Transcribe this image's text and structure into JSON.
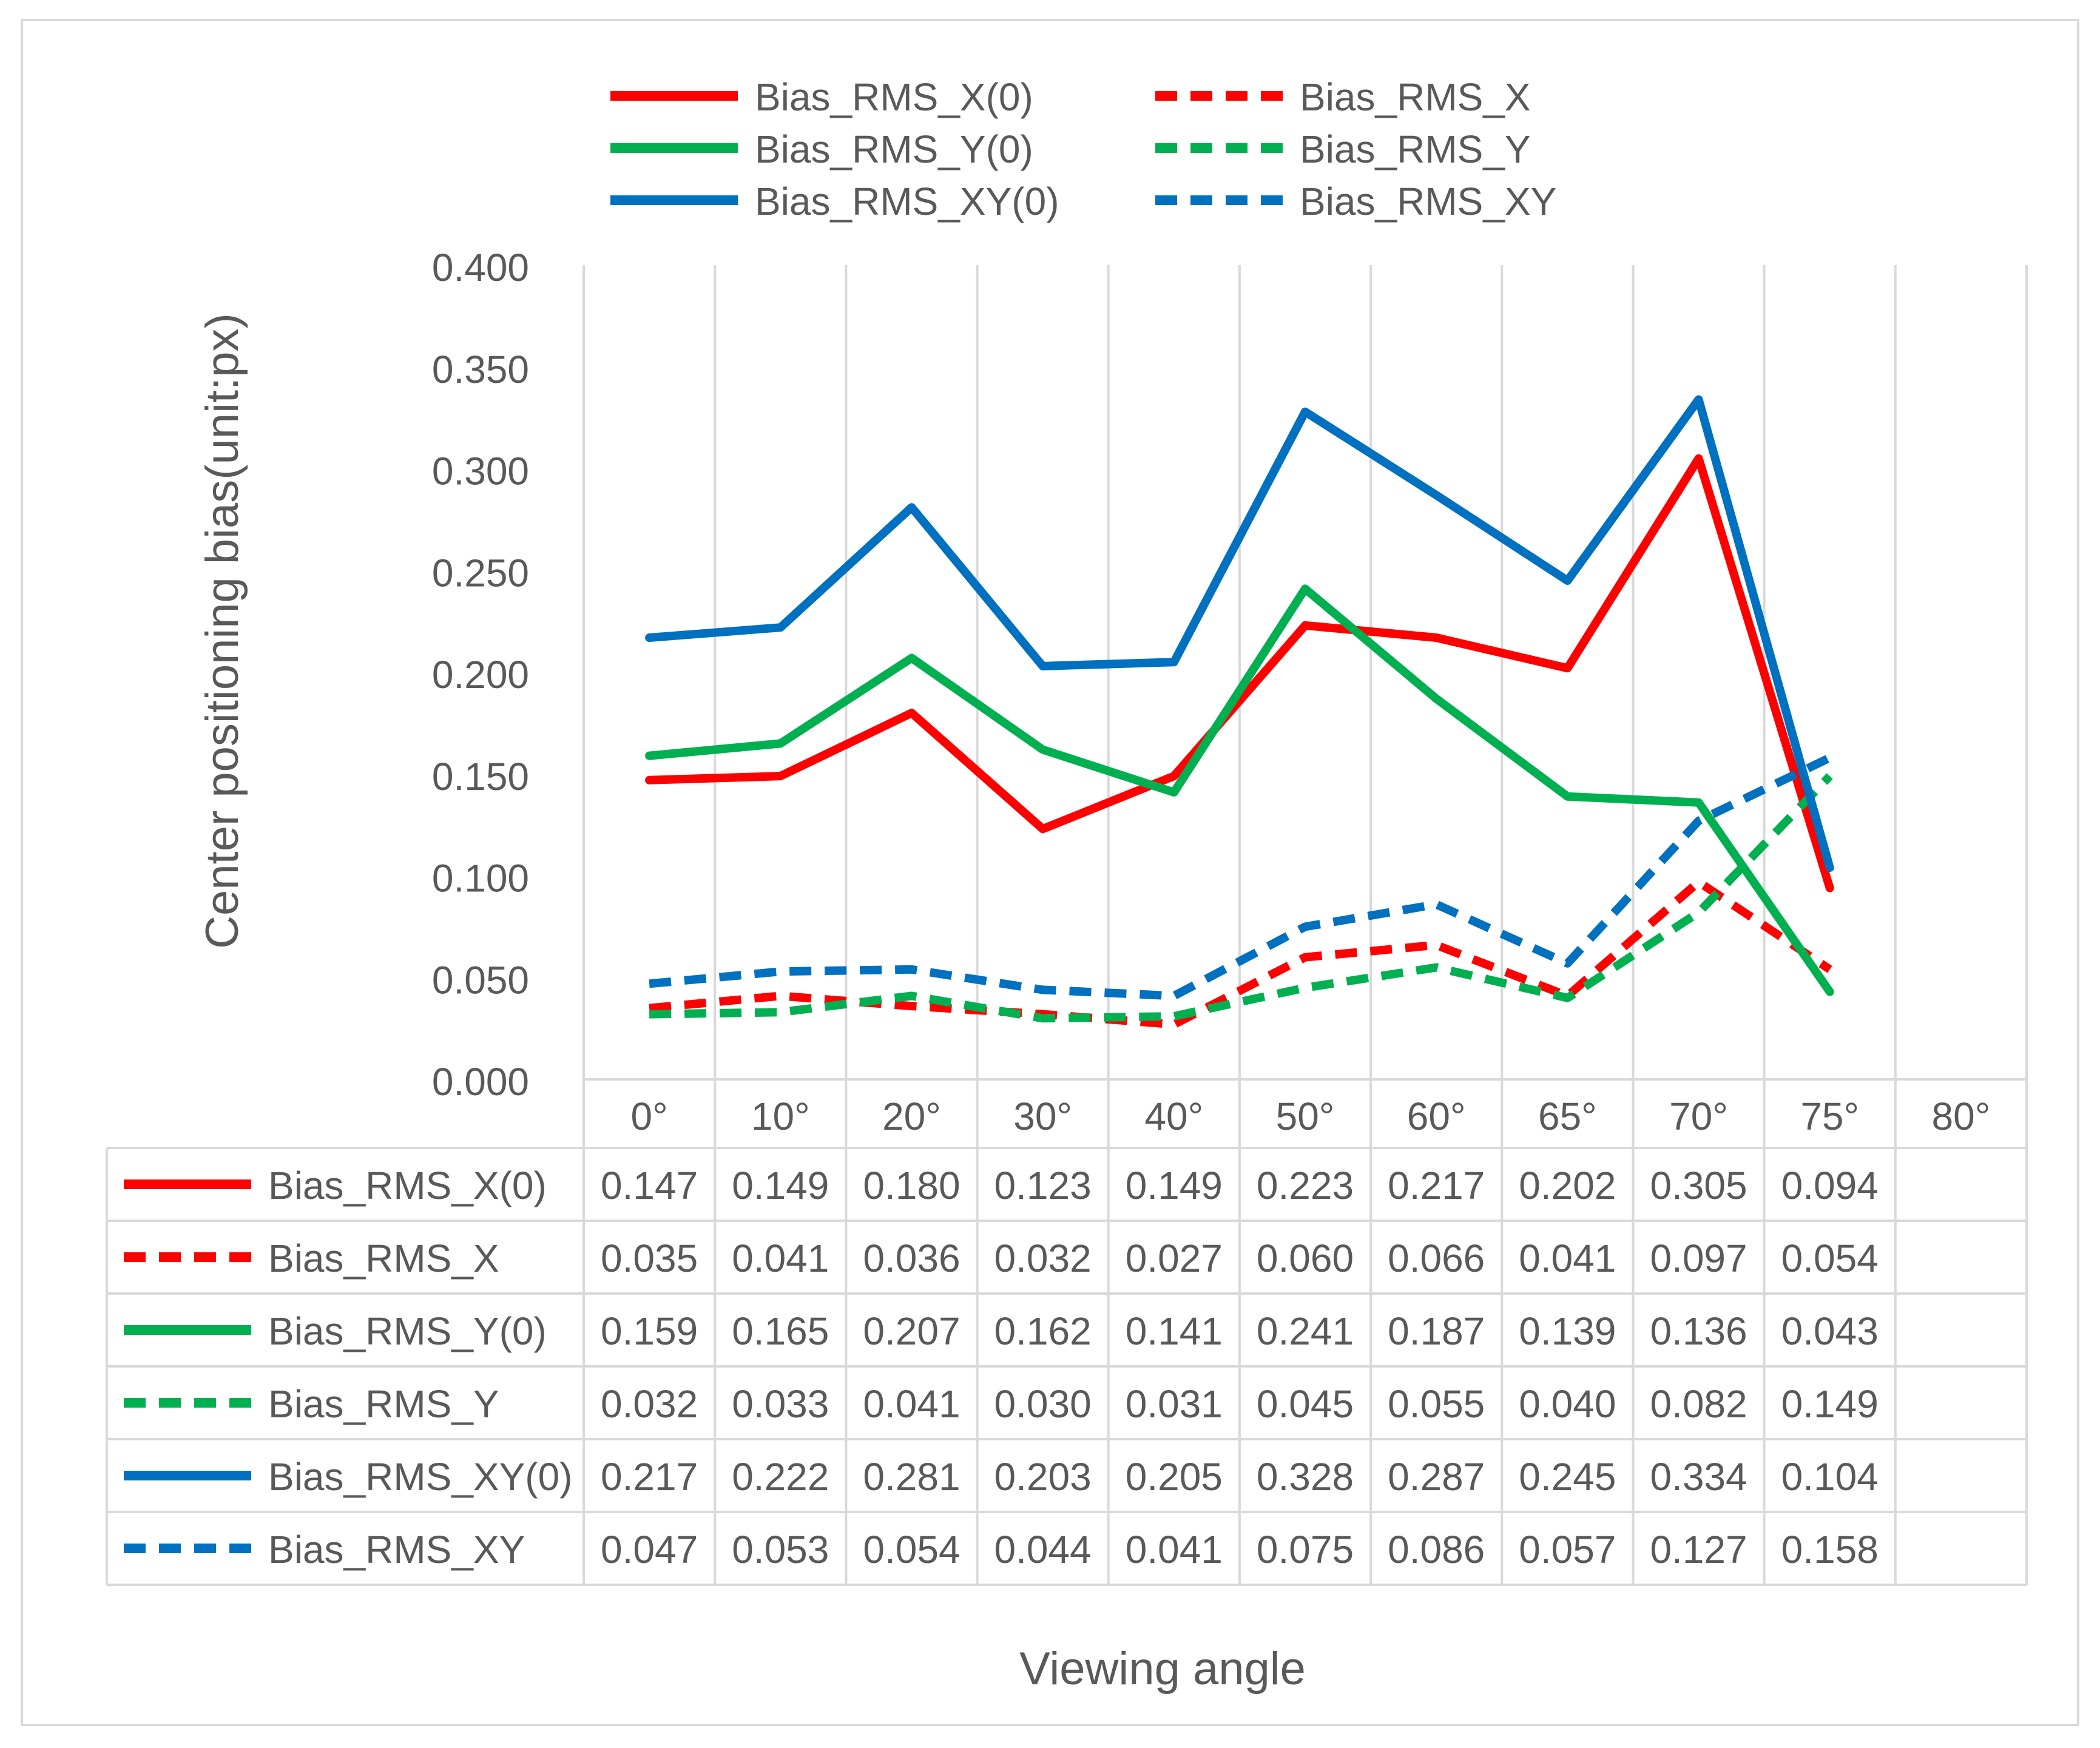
{
  "chart_data": {
    "type": "line",
    "title": "",
    "xlabel": "Viewing angle",
    "ylabel": "Center positioning bias(unit:px)",
    "categories": [
      "0°",
      "10°",
      "20°",
      "30°",
      "40°",
      "50°",
      "60°",
      "65°",
      "70°",
      "75°",
      "80°"
    ],
    "ylim": [
      0,
      0.4
    ],
    "yticks": [
      "0.000",
      "0.050",
      "0.100",
      "0.150",
      "0.200",
      "0.250",
      "0.300",
      "0.350",
      "0.400"
    ],
    "grid": "vertical",
    "legend": "top",
    "series": [
      {
        "name": "Bias_RMS_X(0)",
        "color": "#ff0000",
        "dash": "solid",
        "values": [
          0.147,
          0.149,
          0.18,
          0.123,
          0.149,
          0.223,
          0.217,
          0.202,
          0.305,
          0.094,
          null
        ],
        "labels": [
          "0.147",
          "0.149",
          "0.180",
          "0.123",
          "0.149",
          "0.223",
          "0.217",
          "0.202",
          "0.305",
          "0.094",
          ""
        ]
      },
      {
        "name": "Bias_RMS_X",
        "color": "#ff0000",
        "dash": "dashed",
        "values": [
          0.035,
          0.041,
          0.036,
          0.032,
          0.027,
          0.06,
          0.066,
          0.041,
          0.097,
          0.054,
          null
        ],
        "labels": [
          "0.035",
          "0.041",
          "0.036",
          "0.032",
          "0.027",
          "0.060",
          "0.066",
          "0.041",
          "0.097",
          "0.054",
          ""
        ]
      },
      {
        "name": "Bias_RMS_Y(0)",
        "color": "#00b050",
        "dash": "solid",
        "values": [
          0.159,
          0.165,
          0.207,
          0.162,
          0.141,
          0.241,
          0.187,
          0.139,
          0.136,
          0.043,
          null
        ],
        "labels": [
          "0.159",
          "0.165",
          "0.207",
          "0.162",
          "0.141",
          "0.241",
          "0.187",
          "0.139",
          "0.136",
          "0.043",
          ""
        ]
      },
      {
        "name": "Bias_RMS_Y",
        "color": "#00b050",
        "dash": "dashed",
        "values": [
          0.032,
          0.033,
          0.041,
          0.03,
          0.031,
          0.045,
          0.055,
          0.04,
          0.082,
          0.149,
          null
        ],
        "labels": [
          "0.032",
          "0.033",
          "0.041",
          "0.030",
          "0.031",
          "0.045",
          "0.055",
          "0.040",
          "0.082",
          "0.149",
          ""
        ]
      },
      {
        "name": "Bias_RMS_XY(0)",
        "color": "#0070c0",
        "dash": "solid",
        "values": [
          0.217,
          0.222,
          0.281,
          0.203,
          0.205,
          0.328,
          0.287,
          0.245,
          0.334,
          0.104,
          null
        ],
        "labels": [
          "0.217",
          "0.222",
          "0.281",
          "0.203",
          "0.205",
          "0.328",
          "0.287",
          "0.245",
          "0.334",
          "0.104",
          ""
        ]
      },
      {
        "name": "Bias_RMS_XY",
        "color": "#0070c0",
        "dash": "dashed",
        "values": [
          0.047,
          0.053,
          0.054,
          0.044,
          0.041,
          0.075,
          0.086,
          0.057,
          0.127,
          0.158,
          null
        ],
        "labels": [
          "0.047",
          "0.053",
          "0.054",
          "0.044",
          "0.041",
          "0.075",
          "0.086",
          "0.057",
          "0.127",
          "0.158",
          ""
        ]
      }
    ]
  }
}
